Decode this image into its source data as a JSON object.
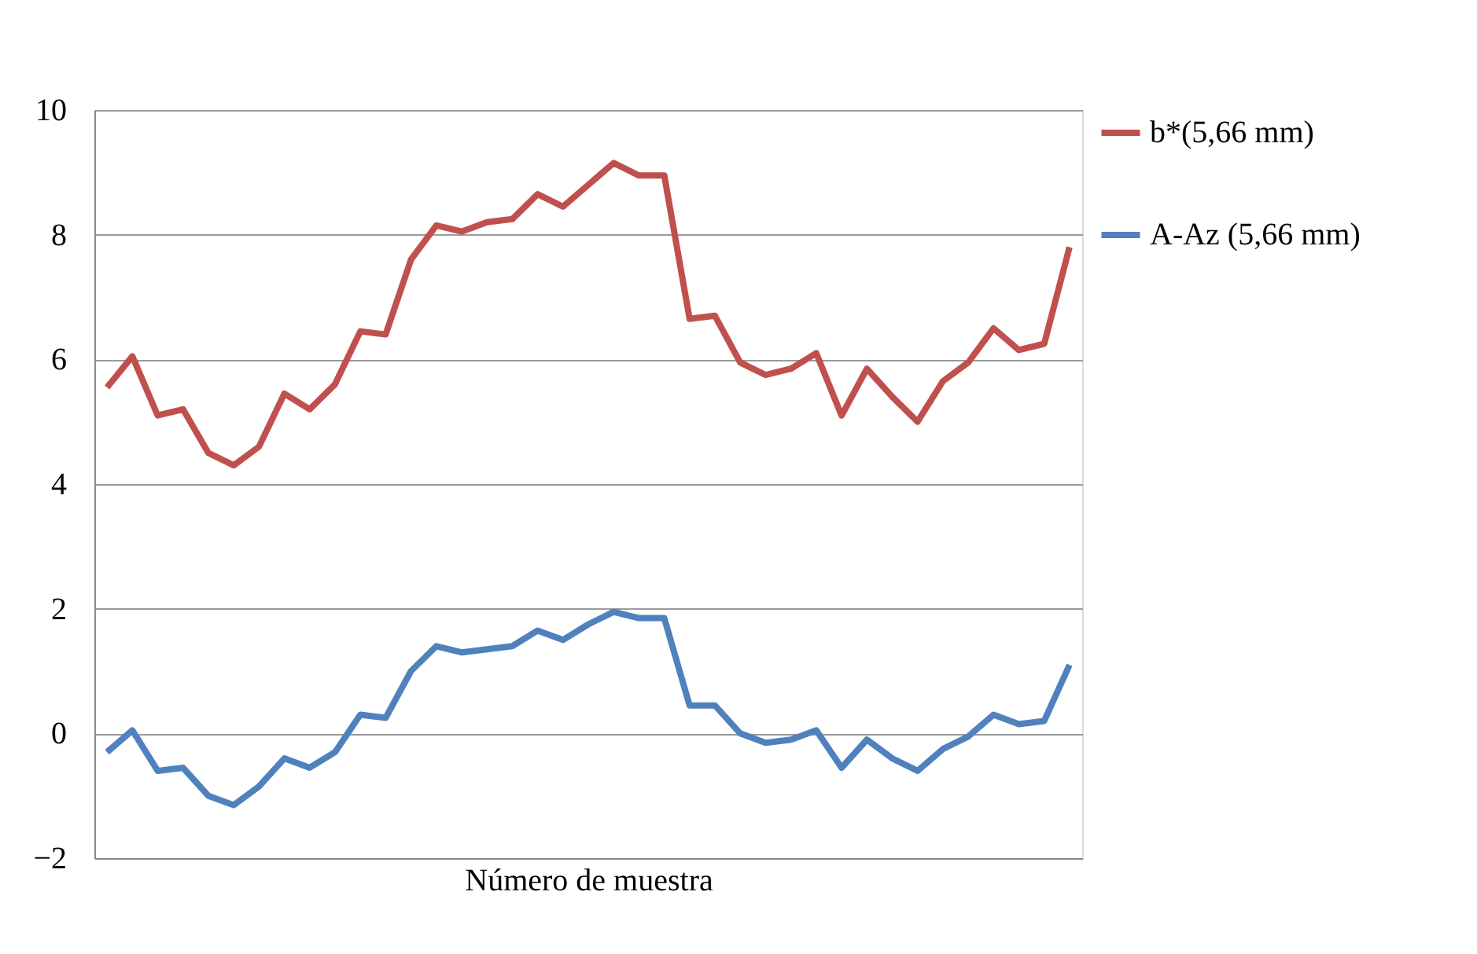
{
  "chart_data": {
    "type": "line",
    "xlabel": "Número de muestra",
    "categories": [
      null,
      null,
      null,
      null,
      null,
      null,
      null,
      null,
      null,
      null,
      null,
      null,
      null,
      null,
      null,
      null,
      null,
      null,
      null,
      null,
      null,
      null,
      null,
      null,
      null,
      null,
      null,
      null,
      null,
      null,
      null,
      null,
      null,
      null,
      null,
      null,
      null,
      null,
      null
    ],
    "series": [
      {
        "name": "b*(5,66 mm)",
        "color": "#c0504d",
        "values": [
          5.55,
          6.05,
          5.1,
          5.2,
          4.5,
          4.3,
          4.6,
          5.45,
          5.2,
          5.6,
          6.45,
          6.4,
          7.6,
          8.15,
          8.05,
          8.2,
          8.25,
          8.65,
          8.45,
          8.8,
          9.15,
          8.95,
          8.95,
          6.65,
          6.7,
          5.95,
          5.75,
          5.85,
          6.1,
          5.1,
          5.85,
          5.4,
          5.0,
          5.65,
          5.95,
          6.5,
          6.15,
          6.25,
          7.8
        ]
      },
      {
        "name": "A-Az (5,66 mm)",
        "color": "#4f81bd",
        "values": [
          -0.3,
          0.05,
          -0.6,
          -0.55,
          -1.0,
          -1.15,
          -0.85,
          -0.4,
          -0.55,
          -0.3,
          0.3,
          0.25,
          1.0,
          1.4,
          1.3,
          1.35,
          1.4,
          1.65,
          1.5,
          1.75,
          1.95,
          1.85,
          1.85,
          0.45,
          0.45,
          0.0,
          -0.15,
          -0.1,
          0.05,
          -0.55,
          -0.1,
          -0.4,
          -0.6,
          -0.25,
          -0.05,
          0.3,
          0.15,
          0.2,
          1.1
        ]
      }
    ],
    "ylim": [
      -2,
      10
    ],
    "yticks": [
      -2,
      0,
      2,
      4,
      6,
      8,
      10
    ],
    "grid": "y",
    "legend": "right",
    "tick_labels": "y",
    "marker": "none",
    "line_style": "solid"
  }
}
